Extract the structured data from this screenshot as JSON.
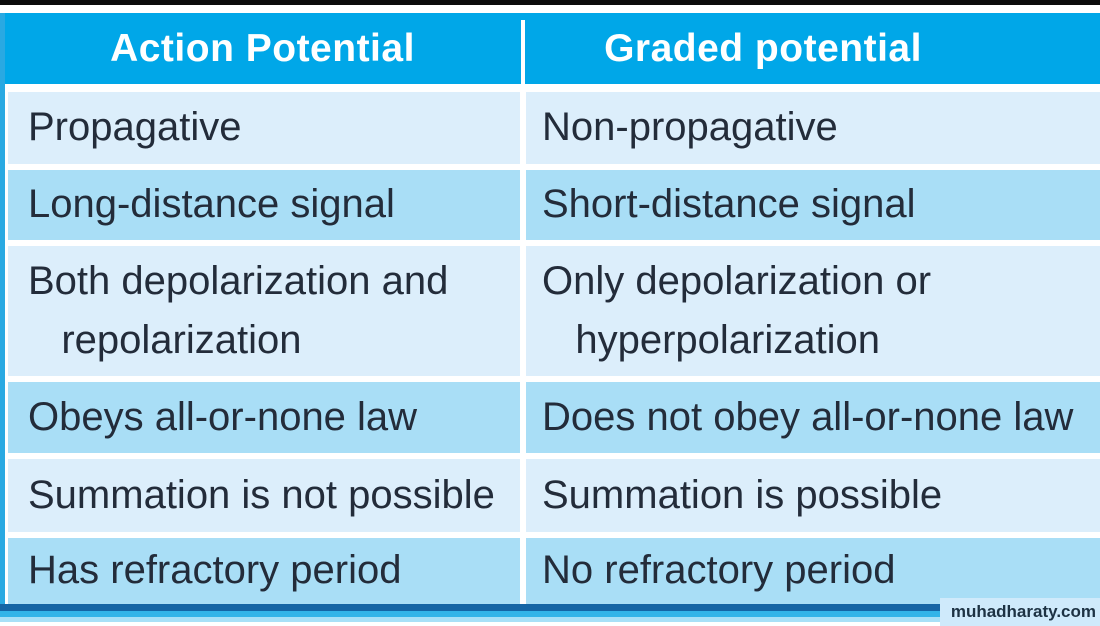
{
  "colors": {
    "header_bg": "#00a7e8",
    "header_text": "#ffffff",
    "row_light": "#dceefb",
    "row_medium": "#a9def6",
    "body_text": "#232c3a",
    "accent": "#29a9e2",
    "bottom_dark": "#1565a5",
    "bottom_cyan": "#33b4e8"
  },
  "table": {
    "headers": {
      "left": "Action Potential",
      "right": "Graded potential"
    },
    "rows": [
      {
        "left": "Propagative",
        "right": "Non-propagative"
      },
      {
        "left": "Long-distance signal",
        "right": "Short-distance signal"
      },
      {
        "left": "Both depolarization and\n   repolarization",
        "right": "Only depolarization or\n   hyperpolarization"
      },
      {
        "left": "Obeys all-or-none law",
        "right": "Does not obey all-or-none law"
      },
      {
        "left": "Summation is not possible",
        "right": "Summation is possible"
      },
      {
        "left": "Has refractory period",
        "right": "No refractory period"
      }
    ]
  },
  "watermark": "muhadharaty.com"
}
